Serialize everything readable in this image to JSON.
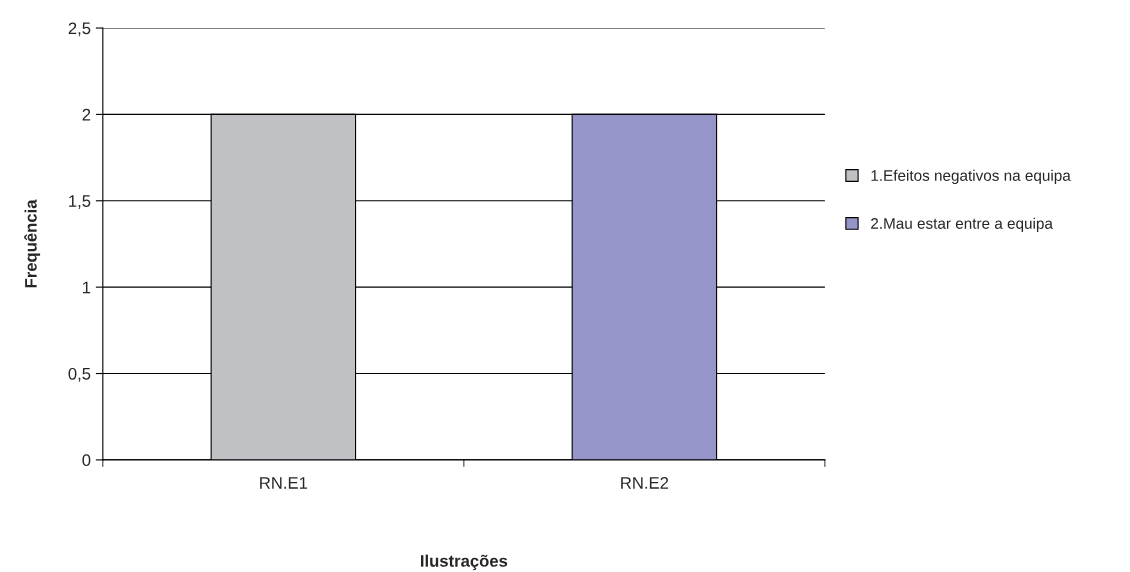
{
  "chart_data": {
    "type": "bar",
    "xlabel": "Ilustrações",
    "ylabel": "Frequência",
    "categories": [
      "RN.E1",
      "RN.E2"
    ],
    "series": [
      {
        "name": "1.Efeitos negativos na equipa",
        "color": "#c0c1c5",
        "values": [
          2,
          null
        ]
      },
      {
        "name": "2.Mau estar entre a equipa",
        "color": "#9595c9",
        "values": [
          null,
          2
        ]
      }
    ],
    "ylim": [
      0,
      2.5
    ],
    "yticks": [
      0,
      {
        "value": 0.5,
        "label": "0,5"
      },
      1,
      {
        "value": 1.5,
        "label": "1,5"
      },
      2,
      {
        "value": 2.5,
        "label": "2,5"
      }
    ],
    "grid": "y",
    "legend": "right"
  }
}
